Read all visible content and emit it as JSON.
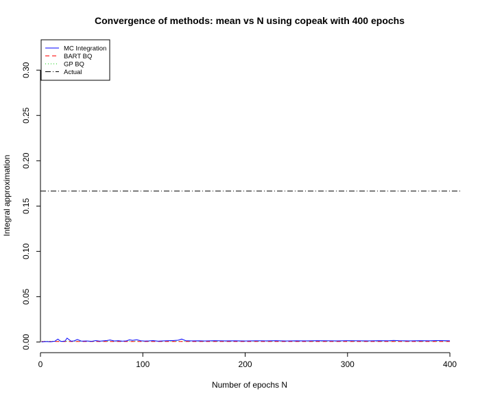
{
  "chart_data": {
    "type": "line",
    "title": "Convergence of methods: mean vs N using copeak with 400 epochs",
    "xlabel": "Number of epochs N",
    "ylabel": "Integral approximation",
    "xlim": [
      0,
      410
    ],
    "ylim": [
      -0.008,
      0.335
    ],
    "x_ticks": [
      0,
      100,
      200,
      300,
      400
    ],
    "y_ticks": [
      0.0,
      0.05,
      0.1,
      0.15,
      0.2,
      0.25,
      0.3
    ],
    "x_tick_labels": [
      "0",
      "100",
      "200",
      "300",
      "400"
    ],
    "y_tick_labels": [
      "0.00",
      "0.05",
      "0.10",
      "0.15",
      "0.20",
      "0.25",
      "0.30"
    ],
    "legend": {
      "position": "top-left",
      "entries": [
        {
          "label": "MC Integration",
          "color": "#0000ff",
          "dash": "solid"
        },
        {
          "label": "BART BQ",
          "color": "#ff0000",
          "dash": "dashed"
        },
        {
          "label": "GP BQ",
          "color": "#00cc00",
          "dash": "dotted"
        },
        {
          "label": "Actual",
          "color": "#000000",
          "dash": "dotdash"
        }
      ]
    },
    "series": [
      {
        "name": "MC Integration",
        "color": "#0000ff",
        "x": [
          1,
          5,
          10,
          14,
          17,
          20,
          24,
          26,
          30,
          33,
          36,
          40,
          45,
          50,
          54,
          58,
          62,
          65,
          68,
          72,
          76,
          80,
          84,
          87,
          90,
          94,
          98,
          102,
          106,
          110,
          115,
          120,
          125,
          130,
          134,
          138,
          142,
          148,
          155,
          160,
          170,
          180,
          190,
          200,
          210,
          220,
          230,
          240,
          250,
          260,
          270,
          280,
          290,
          300,
          310,
          320,
          330,
          340,
          345,
          350,
          360,
          370,
          380,
          390,
          400
        ],
        "y": [
          0.0,
          0.0005,
          0.0002,
          0.0008,
          0.0032,
          0.0005,
          0.001,
          0.0042,
          0.0008,
          0.0012,
          0.0028,
          0.0009,
          0.0011,
          0.0007,
          0.0015,
          0.0009,
          0.0013,
          0.0016,
          0.0022,
          0.0011,
          0.0014,
          0.0009,
          0.0012,
          0.0024,
          0.0018,
          0.0025,
          0.0013,
          0.001,
          0.0012,
          0.0015,
          0.0009,
          0.0012,
          0.0014,
          0.0016,
          0.0018,
          0.0032,
          0.0014,
          0.0012,
          0.0013,
          0.0011,
          0.0014,
          0.0012,
          0.0013,
          0.0011,
          0.0013,
          0.0012,
          0.0014,
          0.0011,
          0.0013,
          0.0012,
          0.0014,
          0.0013,
          0.0012,
          0.0014,
          0.0013,
          0.0012,
          0.0014,
          0.0013,
          0.0017,
          0.0014,
          0.0012,
          0.0014,
          0.0013,
          0.0015,
          0.0013
        ]
      },
      {
        "name": "BART BQ",
        "color": "#ff0000",
        "x": [
          1,
          400
        ],
        "y": [
          0.0005,
          0.0005
        ]
      },
      {
        "name": "GP BQ",
        "color": "#00cc00",
        "x": [
          1,
          400
        ],
        "y": [
          0.0008,
          0.0008
        ]
      }
    ],
    "reference_lines": [
      {
        "name": "Actual",
        "color": "#000000",
        "y": 0.1666,
        "dash": "dotdash"
      }
    ]
  }
}
